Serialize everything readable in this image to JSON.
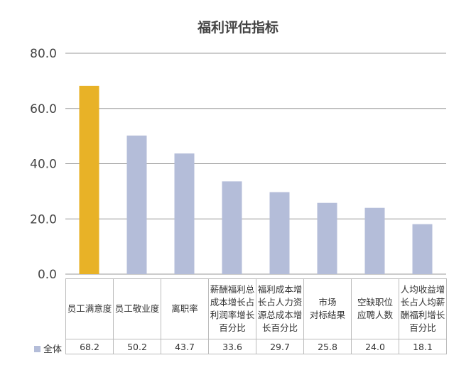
{
  "chart_data": {
    "type": "bar",
    "title": "福利评估指标",
    "categories": [
      "员工满意度",
      "员工敬业度",
      "离职率",
      "薪酬福利总\n成本增长占\n利润率增长\n百分比",
      "福利成本增\n长占人力资\n源总成本增\n长百分比",
      "市场\n对标结果",
      "空缺职位\n应聘人数",
      "人均收益增\n长占人均薪\n酬福利增长\n百分比"
    ],
    "series": [
      {
        "name": "全体",
        "values": [
          68.2,
          50.2,
          43.7,
          33.6,
          29.7,
          25.8,
          24.0,
          18.1
        ]
      }
    ],
    "value_labels": [
      "68.2",
      "50.2",
      "43.7",
      "33.6",
      "29.7",
      "25.8",
      "24.0",
      "18.1"
    ],
    "ylim": [
      0,
      80
    ],
    "yticks": [
      "0.0",
      "20.0",
      "40.0",
      "60.0",
      "80.0"
    ],
    "grid": true,
    "legend": "data-table-left",
    "colors": {
      "highlight": "#E8B227",
      "default": "#B4BDD9"
    },
    "highlight_index": 0
  }
}
